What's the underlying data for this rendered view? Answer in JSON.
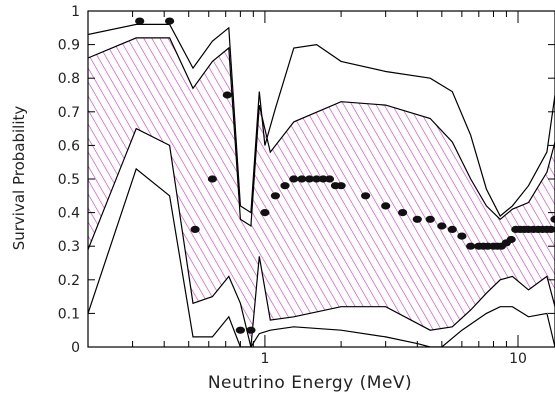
{
  "chart_data": {
    "type": "line",
    "title": "",
    "xlabel": "Neutrino Energy (MeV)",
    "ylabel": "Survival Probability",
    "xscale": "log",
    "xlim": [
      0.2,
      14
    ],
    "ylim": [
      0,
      1
    ],
    "x_ticks": [
      {
        "value": 1,
        "label": "1"
      },
      {
        "value": 10,
        "label": "10"
      }
    ],
    "y_ticks": [
      {
        "value": 0,
        "label": "0"
      },
      {
        "value": 0.1,
        "label": "0.1"
      },
      {
        "value": 0.2,
        "label": "0.2"
      },
      {
        "value": 0.3,
        "label": "0.3"
      },
      {
        "value": 0.4,
        "label": "0.4"
      },
      {
        "value": 0.5,
        "label": "0.5"
      },
      {
        "value": 0.6,
        "label": "0.6"
      },
      {
        "value": 0.7,
        "label": "0.7"
      },
      {
        "value": 0.8,
        "label": "0.8"
      },
      {
        "value": 0.9,
        "label": "0.9"
      },
      {
        "value": 1,
        "label": "1"
      }
    ],
    "x_minor_ticks": [
      0.3,
      0.4,
      0.5,
      0.6,
      0.7,
      0.8,
      0.9,
      2,
      3,
      4,
      5,
      6,
      7,
      8,
      9
    ],
    "grid": false,
    "hatch_color": "#cc33cc",
    "line_color": "#000000",
    "band": {
      "x": [
        0.2,
        0.31,
        0.42,
        0.52,
        0.62,
        0.72,
        0.8,
        0.88,
        0.95,
        1.05,
        1.3,
        2.0,
        3.0,
        4.5,
        5.5,
        6.5,
        7.5,
        8.5,
        9.5,
        11,
        13,
        14
      ],
      "upper": [
        0.86,
        0.92,
        0.92,
        0.77,
        0.85,
        0.89,
        0.38,
        0.36,
        0.72,
        0.58,
        0.67,
        0.73,
        0.72,
        0.68,
        0.61,
        0.5,
        0.42,
        0.38,
        0.41,
        0.43,
        0.52,
        0.61
      ],
      "lower": [
        0.29,
        0.65,
        0.6,
        0.13,
        0.15,
        0.21,
        0.13,
        0.0,
        0.27,
        0.08,
        0.09,
        0.12,
        0.12,
        0.05,
        0.06,
        0.11,
        0.16,
        0.2,
        0.21,
        0.17,
        0.21,
        0.12
      ]
    },
    "outer_upper": {
      "x": [
        0.2,
        0.31,
        0.42,
        0.52,
        0.62,
        0.72,
        0.8,
        0.88,
        0.95,
        1.0,
        1.1,
        1.3,
        1.6,
        2.0,
        3.0,
        4.5,
        5.5,
        6.5,
        7.5,
        8.5,
        9.5,
        11,
        13,
        14
      ],
      "y": [
        0.93,
        0.96,
        0.96,
        0.83,
        0.91,
        0.95,
        0.42,
        0.4,
        0.76,
        0.6,
        0.71,
        0.89,
        0.9,
        0.85,
        0.82,
        0.8,
        0.76,
        0.63,
        0.47,
        0.39,
        0.42,
        0.48,
        0.58,
        0.75
      ]
    },
    "outer_lower": {
      "x": [
        0.2,
        0.31,
        0.42,
        0.52,
        0.62,
        0.72,
        0.8,
        0.88,
        0.95,
        1.05,
        1.3,
        2.0,
        3.0,
        4.0,
        4.5,
        5.0,
        6.0,
        7.5,
        8.5,
        9.5,
        11,
        13,
        14
      ],
      "y": [
        0.1,
        0.53,
        0.45,
        0.03,
        0.03,
        0.09,
        0.0,
        0.0,
        0.04,
        0.05,
        0.06,
        0.05,
        0.03,
        0.01,
        0.0,
        0.0,
        0.05,
        0.1,
        0.12,
        0.12,
        0.09,
        0.1,
        0.0
      ]
    },
    "points": {
      "x": [
        0.32,
        0.42,
        0.53,
        0.62,
        0.71,
        0.8,
        0.88,
        1.0,
        1.1,
        1.2,
        1.3,
        1.4,
        1.5,
        1.6,
        1.7,
        1.8,
        1.9,
        2.0,
        2.5,
        3.0,
        3.5,
        4.0,
        4.5,
        5.0,
        5.5,
        6.0,
        6.5,
        7.0,
        7.3,
        7.6,
        8.0,
        8.3,
        8.6,
        9.0,
        9.4,
        9.8,
        10.2,
        10.6,
        11.0,
        11.5,
        12.0,
        12.5,
        13.0,
        13.5,
        14.0
      ],
      "y": [
        0.97,
        0.97,
        0.35,
        0.5,
        0.75,
        0.05,
        0.05,
        0.4,
        0.45,
        0.48,
        0.5,
        0.5,
        0.5,
        0.5,
        0.5,
        0.5,
        0.48,
        0.48,
        0.45,
        0.42,
        0.4,
        0.38,
        0.38,
        0.36,
        0.35,
        0.33,
        0.3,
        0.3,
        0.3,
        0.3,
        0.3,
        0.3,
        0.3,
        0.31,
        0.32,
        0.35,
        0.35,
        0.35,
        0.35,
        0.35,
        0.35,
        0.35,
        0.35,
        0.35,
        0.38
      ]
    }
  }
}
